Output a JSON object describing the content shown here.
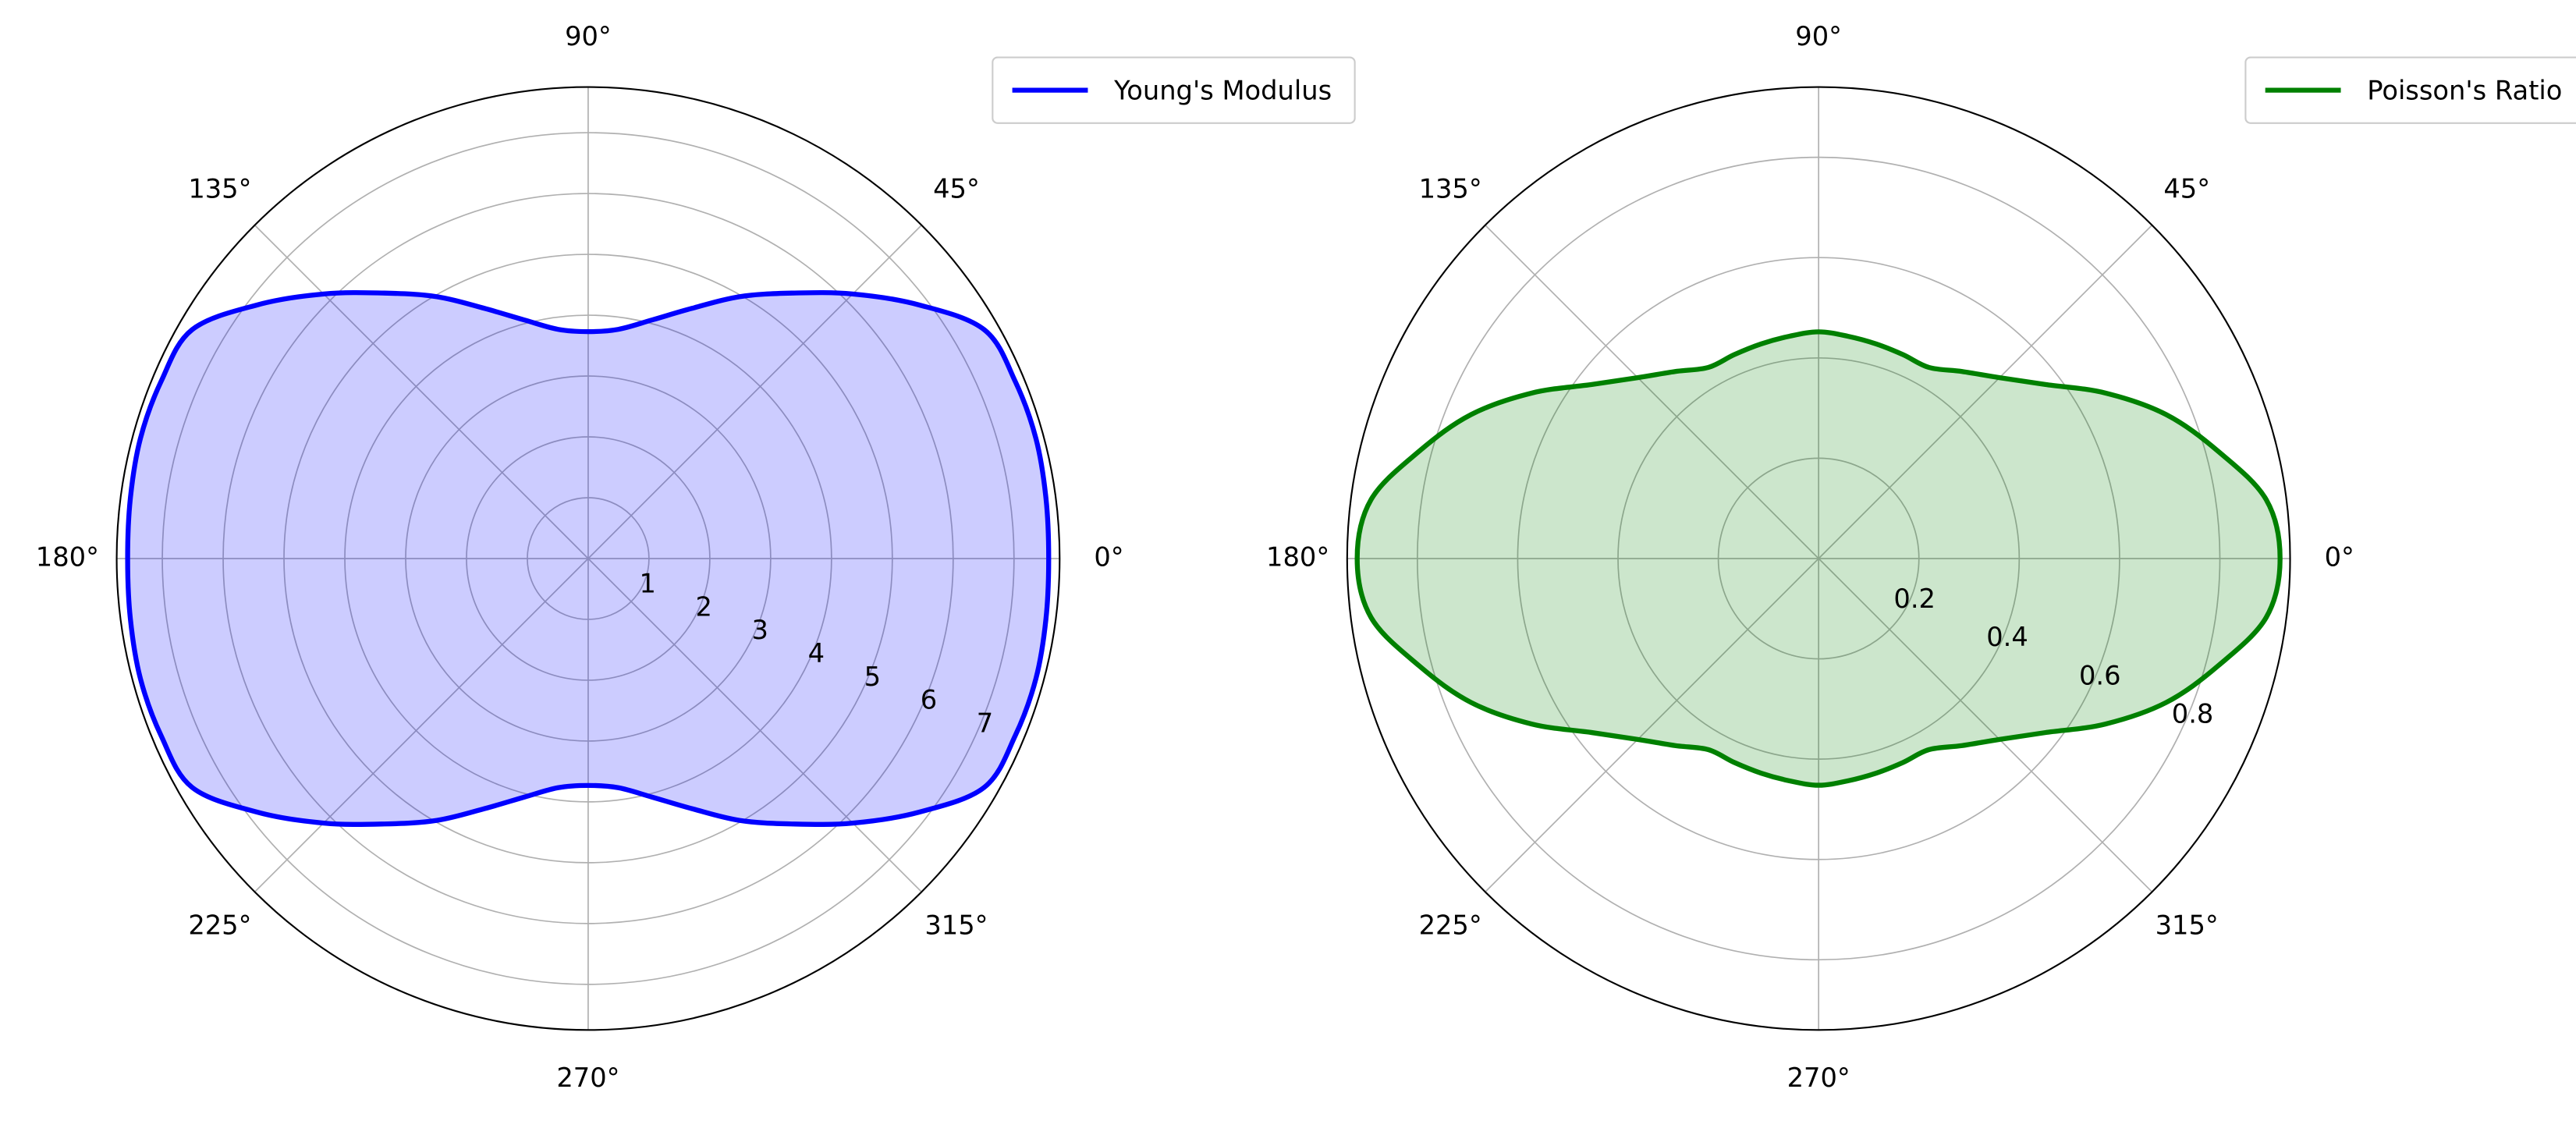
{
  "chart_data": [
    {
      "type": "polar",
      "x": [
        0,
        7.5,
        15,
        22.5,
        30,
        37.5,
        45,
        52.5,
        60,
        67.5,
        75,
        82.5,
        90,
        97.5,
        105,
        112.5,
        120,
        127.5,
        135,
        142.5,
        150,
        157.5,
        165,
        172.5,
        180,
        187.5,
        195,
        202.5,
        210,
        217.5,
        225,
        232.5,
        240,
        247.5,
        255,
        262.5,
        270,
        277.5,
        285,
        292.5,
        300,
        307.5,
        315,
        322.5,
        330,
        337.5,
        345,
        352.5
      ],
      "series": [
        {
          "name": "Young's Modulus",
          "color": "#0000ff",
          "values": [
            7.57,
            7.59,
            7.62,
            7.6,
            7.52,
            6.85,
            6.15,
            5.5,
            4.97,
            4.45,
            4.06,
            3.8,
            3.73,
            3.8,
            4.06,
            4.45,
            4.97,
            5.5,
            6.15,
            6.85,
            7.52,
            7.6,
            7.62,
            7.59,
            7.57,
            7.59,
            7.62,
            7.6,
            7.52,
            6.85,
            6.15,
            5.5,
            4.97,
            4.45,
            4.06,
            3.8,
            3.73,
            3.8,
            4.06,
            4.45,
            4.97,
            5.5,
            6.15,
            6.85,
            7.52,
            7.6,
            7.62,
            7.59
          ]
        }
      ],
      "ylim": [
        0,
        7.75
      ],
      "yticks": [
        1,
        2,
        3,
        4,
        5,
        6,
        7
      ],
      "xticks": [
        {
          "value": 0,
          "label": "0°"
        },
        {
          "value": 45,
          "label": "45°"
        },
        {
          "value": 90,
          "label": "90°"
        },
        {
          "value": 135,
          "label": "135°"
        },
        {
          "value": 180,
          "label": "180°"
        },
        {
          "value": 225,
          "label": "225°"
        },
        {
          "value": 270,
          "label": "270°"
        },
        {
          "value": 315,
          "label": "315°"
        }
      ],
      "grid": true,
      "legend": "upper right"
    },
    {
      "type": "polar",
      "x": [
        0,
        7.5,
        15,
        22.5,
        30,
        37.5,
        45,
        52.5,
        60,
        67.5,
        75,
        82.5,
        90,
        97.5,
        105,
        112.5,
        120,
        127.5,
        135,
        142.5,
        150,
        157.5,
        165,
        172.5,
        180,
        187.5,
        195,
        202.5,
        210,
        217.5,
        225,
        232.5,
        240,
        247.5,
        255,
        262.5,
        270,
        277.5,
        285,
        292.5,
        300,
        307.5,
        315,
        322.5,
        330,
        337.5,
        345,
        352.5
      ],
      "series": [
        {
          "name": "Poisson's Ratio",
          "color": "#008000",
          "values": [
            0.92,
            0.9,
            0.825,
            0.75,
            0.66,
            0.57,
            0.51,
            0.47,
            0.44,
            0.44,
            0.443,
            0.447,
            0.452,
            0.447,
            0.443,
            0.44,
            0.44,
            0.47,
            0.51,
            0.57,
            0.66,
            0.75,
            0.825,
            0.9,
            0.92,
            0.9,
            0.825,
            0.75,
            0.66,
            0.57,
            0.51,
            0.47,
            0.44,
            0.44,
            0.443,
            0.447,
            0.452,
            0.447,
            0.443,
            0.44,
            0.44,
            0.47,
            0.51,
            0.57,
            0.66,
            0.75,
            0.825,
            0.9
          ]
        }
      ],
      "ylim": [
        0,
        0.94
      ],
      "yticks": [
        0.2,
        0.4,
        0.6,
        0.8
      ],
      "xticks": [
        {
          "value": 0,
          "label": "0°"
        },
        {
          "value": 45,
          "label": "45°"
        },
        {
          "value": 90,
          "label": "90°"
        },
        {
          "value": 135,
          "label": "135°"
        },
        {
          "value": 180,
          "label": "180°"
        },
        {
          "value": 225,
          "label": "225°"
        },
        {
          "value": 270,
          "label": "270°"
        },
        {
          "value": 315,
          "label": "315°"
        }
      ],
      "grid": true,
      "legend": "upper right"
    }
  ]
}
